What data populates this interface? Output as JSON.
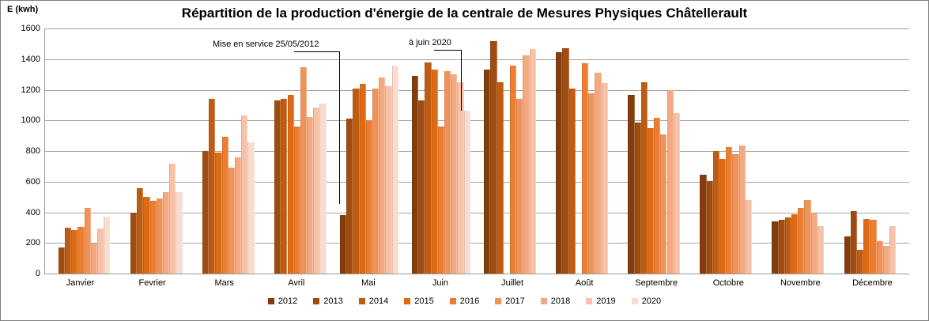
{
  "chart_data": {
    "type": "bar",
    "title": "Répartition de la production d'énergie de la centrale de Mesures Physiques Châtellerault",
    "ylabel": "E (kwh)",
    "xlabel": "",
    "ylim": [
      0,
      1600
    ],
    "ytick_step": 200,
    "yticks": [
      "0",
      "200",
      "400",
      "600",
      "800",
      "1000",
      "1200",
      "1400",
      "1600"
    ],
    "grid": "horizontal",
    "legend_position": "bottom",
    "categories": [
      "Janvier",
      "Fevrier",
      "Mars",
      "Avril",
      "Mai",
      "Juin",
      "Juillet",
      "Août",
      "Septembre",
      "Octobre",
      "Novembre",
      "Décembre"
    ],
    "series": [
      {
        "name": "2012",
        "color": "#843c0c",
        "values": [
          null,
          null,
          null,
          null,
          380,
          1290,
          1330,
          1445,
          1165,
          645,
          340,
          245
        ]
      },
      {
        "name": "2013",
        "color": "#a04c10",
        "values": [
          170,
          400,
          800,
          1130,
          1010,
          1130,
          1515,
          1470,
          985,
          605,
          350,
          410
        ]
      },
      {
        "name": "2014",
        "color": "#c05c12",
        "values": [
          300,
          560,
          1140,
          1140,
          1210,
          1380,
          1250,
          1210,
          1250,
          800,
          365,
          155
        ]
      },
      {
        "name": "2015",
        "color": "#de6b14",
        "values": [
          285,
          500,
          790,
          1165,
          1240,
          1330,
          0,
          0,
          950,
          750,
          385,
          355
        ]
      },
      {
        "name": "2016",
        "color": "#ed7d31",
        "values": [
          305,
          475,
          895,
          960,
          1000,
          960,
          1355,
          1375,
          1015,
          825,
          430,
          350
        ]
      },
      {
        "name": "2017",
        "color": "#f0935a",
        "values": [
          430,
          490,
          690,
          1345,
          1210,
          1320,
          1140,
          1175,
          910,
          780,
          480,
          210
        ]
      },
      {
        "name": "2018",
        "color": "#f3aa82",
        "values": [
          195,
          530,
          760,
          1020,
          1280,
          1300,
          1425,
          1310,
          1200,
          835,
          390,
          180
        ]
      },
      {
        "name": "2019",
        "color": "#f7c2a8",
        "values": [
          295,
          715,
          1030,
          1085,
          1225,
          1250,
          1465,
          1245,
          1050,
          480,
          310,
          310
        ]
      },
      {
        "name": "2020",
        "color": "#fadcce",
        "values": [
          370,
          530,
          855,
          1110,
          1355,
          1065,
          null,
          null,
          null,
          null,
          null,
          null
        ]
      }
    ],
    "annotations": [
      {
        "text": "Mise en service 25/05/2012",
        "points_to": "Mai 2012"
      },
      {
        "text": "à juin 2020",
        "points_to": "Juin 2020"
      }
    ]
  }
}
